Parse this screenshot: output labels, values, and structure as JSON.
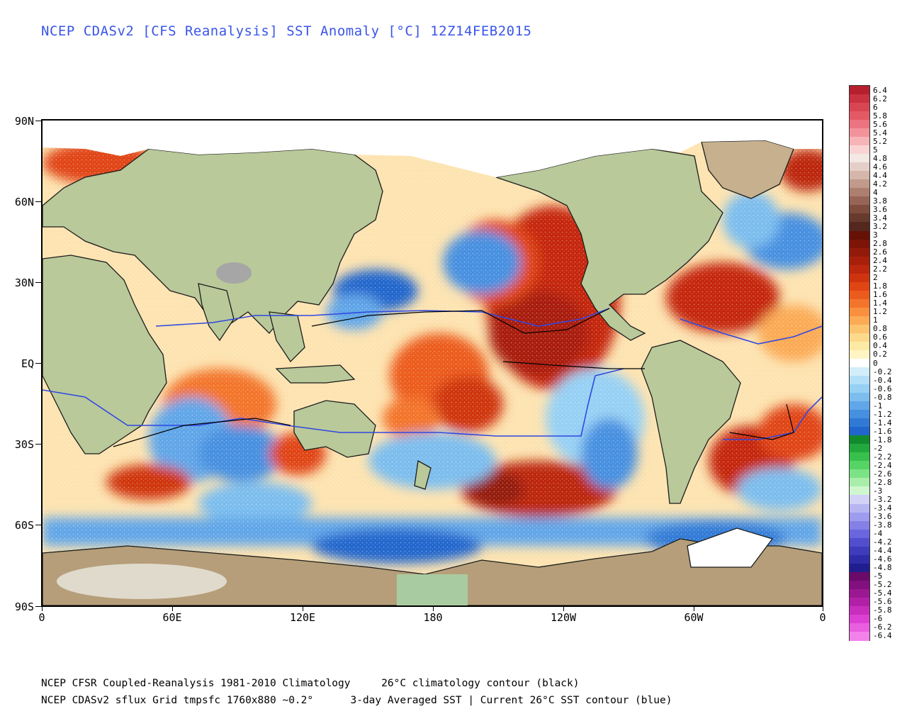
{
  "title": "NCEP CDASv2 [CFS Reanalysis] SST Anomaly [°C] 12Z14FEB2015",
  "latitude_labels": [
    "90N",
    "60N",
    "30N",
    "EQ",
    "30S",
    "60S",
    "90S"
  ],
  "longitude_labels": [
    "0",
    "60E",
    "120E",
    "180",
    "120W",
    "60W",
    "0"
  ],
  "colorbar": {
    "labels": [
      "6.4",
      "6.2",
      "6",
      "5.8",
      "5.6",
      "5.4",
      "5.2",
      "5",
      "4.8",
      "4.6",
      "4.4",
      "4.2",
      "4",
      "3.8",
      "3.6",
      "3.4",
      "3.2",
      "3",
      "2.8",
      "2.6",
      "2.4",
      "2.2",
      "2",
      "1.8",
      "1.6",
      "1.4",
      "1.2",
      "1",
      "0.8",
      "0.6",
      "0.4",
      "0.2",
      "0",
      "-0.2",
      "-0.4",
      "-0.6",
      "-0.8",
      "-1",
      "-1.2",
      "-1.4",
      "-1.6",
      "-1.8",
      "-2",
      "-2.2",
      "-2.4",
      "-2.6",
      "-2.8",
      "-3",
      "-3.2",
      "-3.4",
      "-3.6",
      "-3.8",
      "-4",
      "-4.2",
      "-4.4",
      "-4.6",
      "-4.8",
      "-5",
      "-5.2",
      "-5.4",
      "-5.6",
      "-5.8",
      "-6",
      "-6.2",
      "-6.4"
    ],
    "colors": [
      "#b51f2e",
      "#c8333f",
      "#d84652",
      "#e35a65",
      "#ec7480",
      "#f2939b",
      "#f6b4b8",
      "#fad4d4",
      "#f3e8e4",
      "#e4cfc8",
      "#d4b6ab",
      "#c29a8c",
      "#ad7f70",
      "#966555",
      "#7f4d3e",
      "#683a2d",
      "#54281e",
      "#661006",
      "#7d1408",
      "#931a0a",
      "#a8200c",
      "#bc280e",
      "#cf3410",
      "#e04514",
      "#ec5b1e",
      "#f3752c",
      "#f8903f",
      "#fbaa55",
      "#fdc46f",
      "#fdd98b",
      "#fde9a6",
      "#fff5c4",
      "#ffffff",
      "#d3eefa",
      "#b3e0f8",
      "#96d0f4",
      "#7cbdee",
      "#60a6e8",
      "#4690e0",
      "#307ad6",
      "#2066cc",
      "#128a2e",
      "#22a83c",
      "#38c04d",
      "#56d465",
      "#7ce286",
      "#a8eeaa",
      "#d0f6ce",
      "#d2d2f6",
      "#b8b6f2",
      "#9e9cee",
      "#8480e6",
      "#6a66de",
      "#524fcf",
      "#3e3cbc",
      "#2e2ca6",
      "#201e8e",
      "#6a0a6a",
      "#82107e",
      "#9a1892",
      "#b220a8",
      "#c82ebe",
      "#dc40d2",
      "#ea5ee0",
      "#f282ea"
    ]
  },
  "footer_line1": "NCEP CFSR Coupled-Reanalysis 1981-2010 Climatology     26°C climatology contour (black)",
  "footer_line2": "NCEP CDASv2 sflux Grid tmpsfc 1760x880 ~0.2°      3-day Averaged SST | Current 26°C SST contour (blue)"
}
